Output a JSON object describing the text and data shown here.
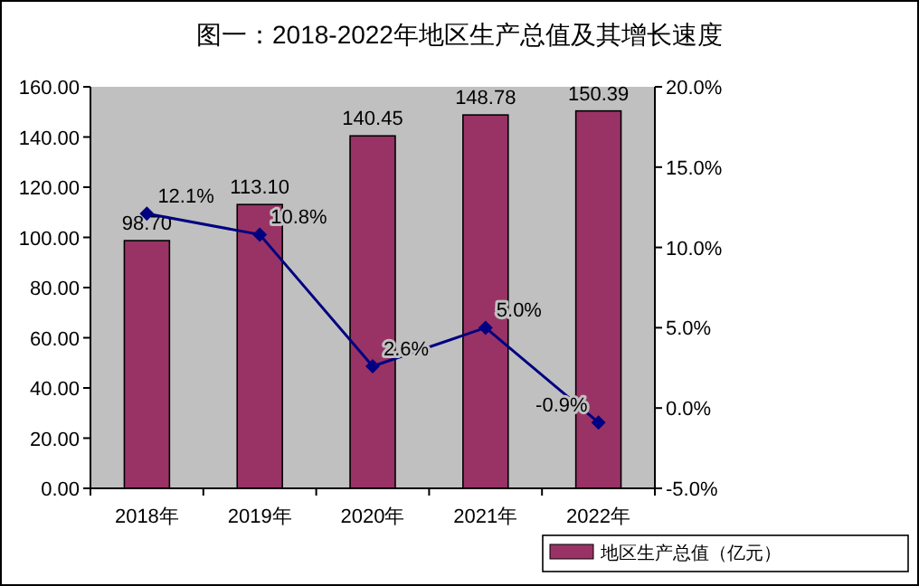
{
  "chart_data": {
    "type": "bar",
    "title": "图一：2018-2022年地区生产总值及其增长速度",
    "categories": [
      "2018年",
      "2019年",
      "2020年",
      "2021年",
      "2022年"
    ],
    "series": [
      {
        "name": "地区生产总值（亿元）",
        "color": "#993366",
        "values": [
          98.7,
          113.1,
          140.45,
          148.78,
          150.39
        ],
        "value_labels": [
          "98.70",
          "113.10",
          "140.45",
          "148.78",
          "150.39"
        ]
      },
      {
        "type": "line",
        "axis": "y2",
        "color": "#000080",
        "marker": "diamond",
        "values": [
          12.1,
          10.8,
          2.6,
          5.0,
          -0.9
        ],
        "value_labels": [
          "12.1%",
          "10.8%",
          "2.6%",
          "5.0%",
          "-0.9%"
        ]
      }
    ],
    "ylim": [
      0,
      160
    ],
    "yticks": [
      {
        "value": 0,
        "label": "0.00"
      },
      {
        "value": 20,
        "label": "20.00"
      },
      {
        "value": 40,
        "label": "40.00"
      },
      {
        "value": 60,
        "label": "60.00"
      },
      {
        "value": 80,
        "label": "80.00"
      },
      {
        "value": 100,
        "label": "100.00"
      },
      {
        "value": 120,
        "label": "120.00"
      },
      {
        "value": 140,
        "label": "140.00"
      },
      {
        "value": 160,
        "label": "160.00"
      }
    ],
    "y2lim": [
      -5,
      20
    ],
    "y2ticks": [
      {
        "value": -5,
        "label": "-5.0%"
      },
      {
        "value": 0,
        "label": "0.0%"
      },
      {
        "value": 5,
        "label": "5.0%"
      },
      {
        "value": 10,
        "label": "10.0%"
      },
      {
        "value": 15,
        "label": "15.0%"
      },
      {
        "value": 20,
        "label": "20.0%"
      }
    ],
    "grid": false,
    "legend": "bottom right"
  }
}
